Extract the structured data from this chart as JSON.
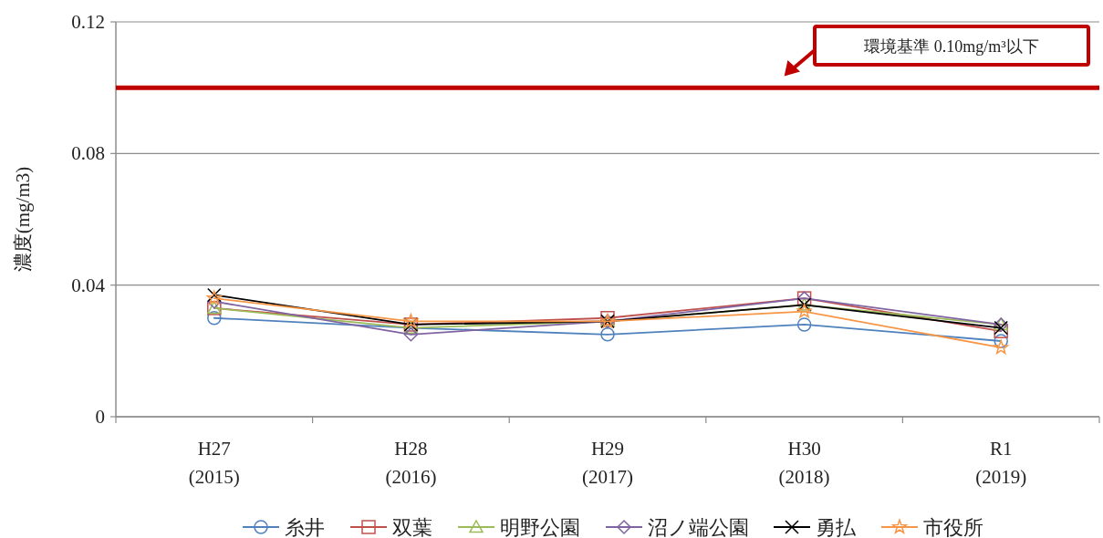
{
  "chart_data": {
    "type": "line",
    "ylabel": "濃度(mg/m3)",
    "categories": [
      "H27\n(2015)",
      "H28\n(2016)",
      "H29\n(2017)",
      "H30\n(2018)",
      "R1\n(2019)"
    ],
    "series": [
      {
        "name": "糸井",
        "color": "#4f81bd",
        "marker": "circle",
        "values": [
          0.03,
          0.027,
          0.025,
          0.028,
          0.023
        ]
      },
      {
        "name": "双葉",
        "color": "#c0504d",
        "marker": "square",
        "values": [
          0.033,
          0.028,
          0.03,
          0.036,
          0.026
        ]
      },
      {
        "name": "明野公園",
        "color": "#9bbb59",
        "marker": "triangle",
        "values": [
          0.033,
          0.027,
          0.029,
          0.034,
          0.028
        ]
      },
      {
        "name": "沼ノ端公園",
        "color": "#8064a2",
        "marker": "diamond",
        "values": [
          0.035,
          0.025,
          0.029,
          0.036,
          0.028
        ]
      },
      {
        "name": "勇払",
        "color": "#000000",
        "marker": "cross",
        "values": [
          0.037,
          0.028,
          0.029,
          0.034,
          0.027
        ]
      },
      {
        "name": "市役所",
        "color": "#f79646",
        "marker": "star",
        "values": [
          0.036,
          0.029,
          0.029,
          0.032,
          0.021
        ]
      }
    ],
    "ylim": [
      0,
      0.12
    ],
    "yticks": [
      0,
      0.04,
      0.08,
      0.12
    ],
    "grid": "y",
    "legend": "bottom",
    "ref_lines": [
      {
        "axis": "y",
        "value": 0.1,
        "label": "環境基準 0.10mg/m³以下",
        "color": "#c00000"
      }
    ]
  }
}
